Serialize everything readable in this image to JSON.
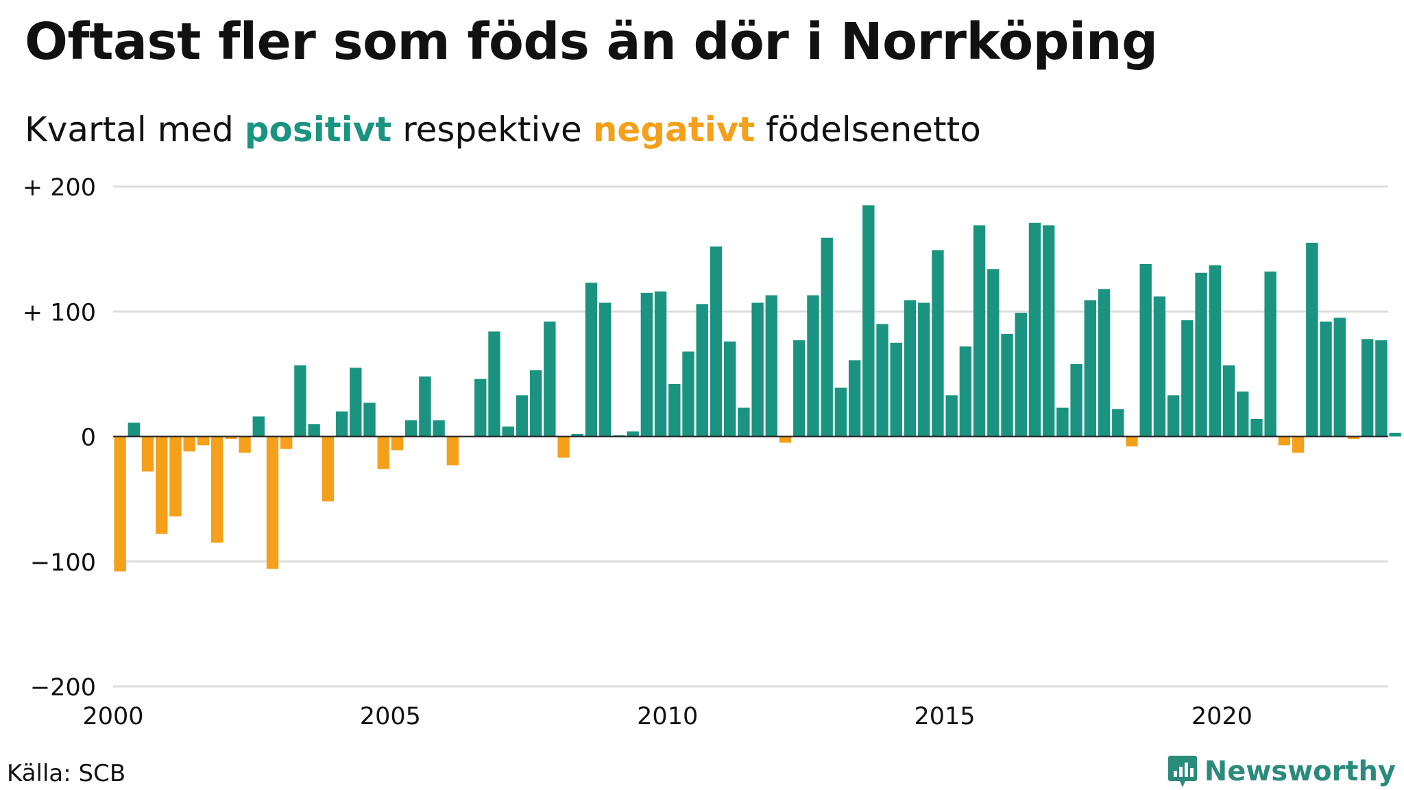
{
  "title": "Oftast fler som föds än dör i Norrköping",
  "subtitle": {
    "prefix": "Kvartal med",
    "positive": "positivt",
    "middle": "respektive",
    "negative": "negativt",
    "suffix": "födelsenetto"
  },
  "source": "Källa: SCB",
  "brand": "Newsworthy",
  "colors": {
    "positive": "#1a9480",
    "negative": "#f4a01b",
    "grid": "#dddddd",
    "text": "#111111",
    "brand": "#2a8a7c"
  },
  "chart_data": {
    "type": "bar",
    "title": "Oftast fler som föds än dör i Norrköping",
    "subtitle": "Kvartal med positivt respektive negativt födelsenetto",
    "xlabel": "",
    "ylabel": "",
    "ylim": [
      -200,
      200
    ],
    "yticks": [
      {
        "value": 200,
        "label": "+ 200"
      },
      {
        "value": 100,
        "label": "+ 100"
      },
      {
        "value": 0,
        "label": "0"
      },
      {
        "value": -100,
        "label": "−100"
      },
      {
        "value": -200,
        "label": "−200"
      }
    ],
    "xlim": [
      2000,
      2023
    ],
    "xticks": [
      {
        "value": 2000,
        "label": "2000"
      },
      {
        "value": 2005,
        "label": "2005"
      },
      {
        "value": 2010,
        "label": "2010"
      },
      {
        "value": 2015,
        "label": "2015"
      },
      {
        "value": 2020,
        "label": "2020"
      }
    ],
    "grid": true,
    "start_year": 2000,
    "values": [
      -108,
      11,
      -28,
      -78,
      -64,
      -12,
      -7,
      -85,
      -2,
      -13,
      16,
      -106,
      -10,
      57,
      10,
      -52,
      20,
      55,
      27,
      -26,
      -11,
      13,
      48,
      13,
      -23,
      0,
      46,
      84,
      8,
      33,
      53,
      92,
      -17,
      2,
      123,
      107,
      1,
      4,
      115,
      116,
      42,
      68,
      106,
      152,
      76,
      23,
      107,
      113,
      -5,
      77,
      113,
      159,
      39,
      61,
      185,
      90,
      75,
      109,
      107,
      149,
      33,
      72,
      169,
      134,
      82,
      99,
      171,
      169,
      23,
      58,
      109,
      118,
      22,
      -8,
      138,
      112,
      33,
      93,
      131,
      137,
      57,
      36,
      14,
      132,
      -7,
      -13,
      155,
      92,
      95,
      -2,
      78,
      77,
      3
    ]
  }
}
